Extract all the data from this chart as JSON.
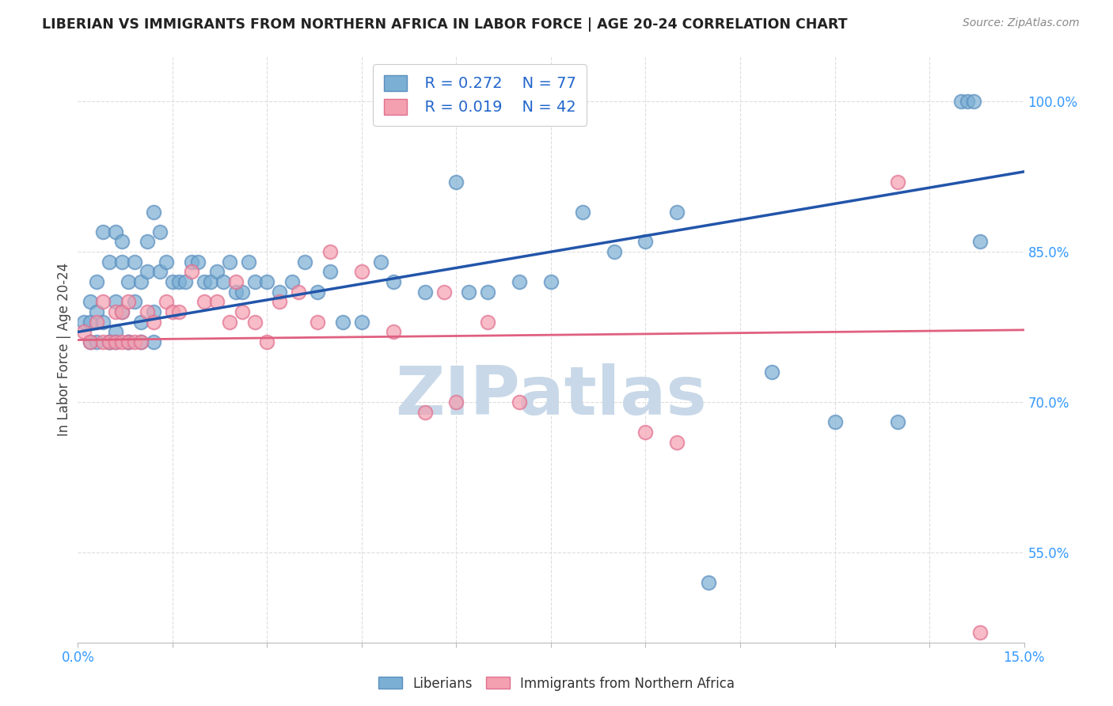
{
  "title": "LIBERIAN VS IMMIGRANTS FROM NORTHERN AFRICA IN LABOR FORCE | AGE 20-24 CORRELATION CHART",
  "source": "Source: ZipAtlas.com",
  "ylabel": "In Labor Force | Age 20-24",
  "xlim": [
    0.0,
    0.15
  ],
  "ylim": [
    0.46,
    1.045
  ],
  "blue_color": "#7BAFD4",
  "blue_edge": "#5B8FBF",
  "pink_color": "#F4A0B0",
  "pink_edge": "#E07090",
  "line_blue": "#2255AA",
  "line_pink": "#E06080",
  "watermark_color": "#C8D8E8",
  "legend_box_color": "#DDDDDD",
  "legend_text_color": "#2266CC",
  "axis_text_color": "#3399FF",
  "title_color": "#222222",
  "source_color": "#888888",
  "grid_color": "#DDDDDD",
  "blue_line_y0": 0.77,
  "blue_line_y1": 0.93,
  "pink_line_y0": 0.762,
  "pink_line_y1": 0.772,
  "blue_x": [
    0.001,
    0.002,
    0.002,
    0.003,
    0.003,
    0.004,
    0.004,
    0.005,
    0.005,
    0.006,
    0.006,
    0.006,
    0.007,
    0.007,
    0.007,
    0.008,
    0.008,
    0.009,
    0.009,
    0.01,
    0.01,
    0.011,
    0.011,
    0.012,
    0.012,
    0.013,
    0.013,
    0.014,
    0.015,
    0.016,
    0.017,
    0.018,
    0.019,
    0.02,
    0.021,
    0.022,
    0.023,
    0.024,
    0.025,
    0.026,
    0.027,
    0.028,
    0.03,
    0.032,
    0.034,
    0.036,
    0.038,
    0.04,
    0.042,
    0.045,
    0.048,
    0.05,
    0.055,
    0.06,
    0.062,
    0.065,
    0.07,
    0.075,
    0.08,
    0.085,
    0.09,
    0.095,
    0.1,
    0.11,
    0.12,
    0.13,
    0.14,
    0.141,
    0.142,
    0.143,
    0.002,
    0.003,
    0.005,
    0.006,
    0.008,
    0.01,
    0.012
  ],
  "blue_y": [
    0.78,
    0.8,
    0.78,
    0.82,
    0.79,
    0.78,
    0.87,
    0.84,
    0.76,
    0.8,
    0.77,
    0.87,
    0.79,
    0.84,
    0.86,
    0.76,
    0.82,
    0.8,
    0.84,
    0.78,
    0.82,
    0.86,
    0.83,
    0.79,
    0.89,
    0.87,
    0.83,
    0.84,
    0.82,
    0.82,
    0.82,
    0.84,
    0.84,
    0.82,
    0.82,
    0.83,
    0.82,
    0.84,
    0.81,
    0.81,
    0.84,
    0.82,
    0.82,
    0.81,
    0.82,
    0.84,
    0.81,
    0.83,
    0.78,
    0.78,
    0.84,
    0.82,
    0.81,
    0.92,
    0.81,
    0.81,
    0.82,
    0.82,
    0.89,
    0.85,
    0.86,
    0.89,
    0.52,
    0.73,
    0.68,
    0.68,
    1.0,
    1.0,
    1.0,
    0.86,
    0.76,
    0.76,
    0.76,
    0.76,
    0.76,
    0.76,
    0.76
  ],
  "pink_x": [
    0.001,
    0.002,
    0.003,
    0.004,
    0.004,
    0.005,
    0.006,
    0.006,
    0.007,
    0.007,
    0.008,
    0.008,
    0.009,
    0.01,
    0.011,
    0.012,
    0.014,
    0.015,
    0.016,
    0.018,
    0.02,
    0.022,
    0.024,
    0.025,
    0.026,
    0.028,
    0.03,
    0.032,
    0.035,
    0.038,
    0.04,
    0.045,
    0.05,
    0.055,
    0.058,
    0.06,
    0.065,
    0.07,
    0.09,
    0.095,
    0.13,
    0.143
  ],
  "pink_y": [
    0.77,
    0.76,
    0.78,
    0.76,
    0.8,
    0.76,
    0.76,
    0.79,
    0.76,
    0.79,
    0.76,
    0.8,
    0.76,
    0.76,
    0.79,
    0.78,
    0.8,
    0.79,
    0.79,
    0.83,
    0.8,
    0.8,
    0.78,
    0.82,
    0.79,
    0.78,
    0.76,
    0.8,
    0.81,
    0.78,
    0.85,
    0.83,
    0.77,
    0.69,
    0.81,
    0.7,
    0.78,
    0.7,
    0.67,
    0.66,
    0.92,
    0.47
  ]
}
